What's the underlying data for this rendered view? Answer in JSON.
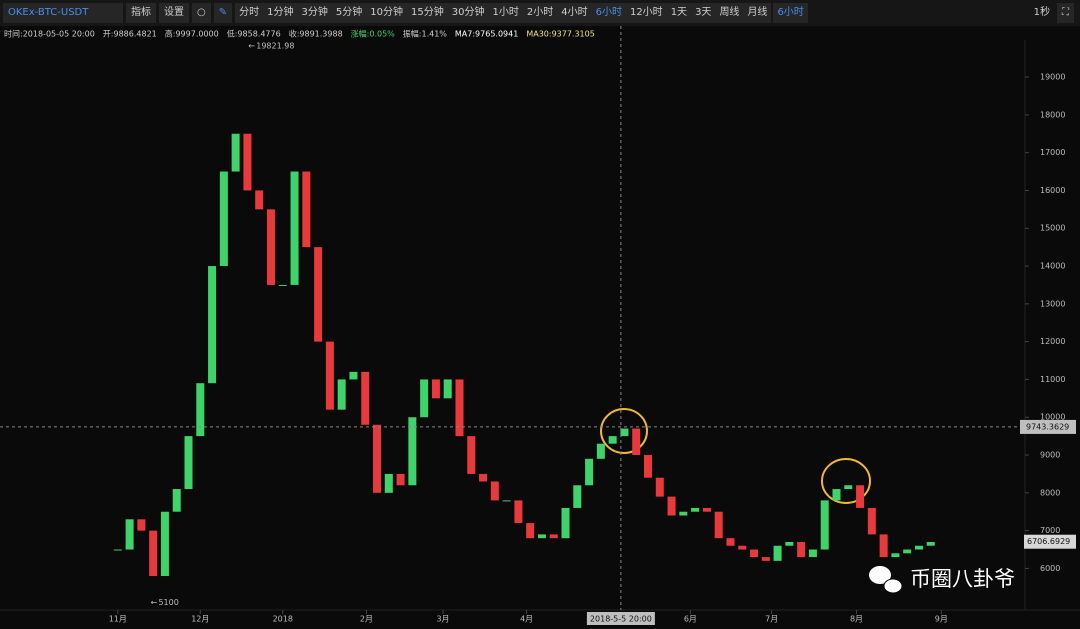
{
  "toolbar": {
    "symbol": "OKEx-BTC-USDT",
    "buttons": [
      "指标",
      "设置"
    ],
    "periods": [
      "分时",
      "1分钟",
      "3分钟",
      "5分钟",
      "10分钟",
      "15分钟",
      "30分钟",
      "1小时",
      "2小时",
      "4小时",
      "6小时",
      "12小时",
      "1天",
      "3天",
      "周线",
      "月线"
    ],
    "active_period": "6小时",
    "dropdown": "6小时",
    "refresh": "1秒"
  },
  "info": [
    {
      "text": "时间:2018-05-05 20:00",
      "color": "#cfcfcf"
    },
    {
      "text": "开:9886.4821",
      "color": "#cfcfcf"
    },
    {
      "text": "高:9997.0000",
      "color": "#cfcfcf"
    },
    {
      "text": "低:9858.4776",
      "color": "#cfcfcf"
    },
    {
      "text": "收:9891.3988",
      "color": "#cfcfcf"
    },
    {
      "text": "涨幅:0.05%",
      "color": "#3fd36b"
    },
    {
      "text": "振幅:1.41%",
      "color": "#cfcfcf"
    },
    {
      "text": "MA7:9765.0941",
      "color": "#ffffff"
    },
    {
      "text": "MA30:9377.3105",
      "color": "#f1e27a"
    }
  ],
  "chart_data": {
    "type": "candlestick",
    "values": [
      6500,
      7300,
      7000,
      5800,
      7500,
      8100,
      9500,
      10900,
      14000,
      16500,
      17500,
      16000,
      15500,
      13500,
      13500,
      16500,
      14500,
      12000,
      10200,
      11000,
      11200,
      9800,
      8000,
      8500,
      8200,
      10000,
      11000,
      10500,
      11000,
      9500,
      8500,
      8300,
      7800,
      7800,
      7200,
      6800,
      6900,
      6800,
      7600,
      8200,
      8900,
      9300,
      9500,
      9700,
      9000,
      8400,
      7900,
      7400,
      7500,
      7600,
      7500,
      6800,
      6600,
      6500,
      6300,
      6200,
      6600,
      6700,
      6300,
      6500,
      7800,
      8100,
      8200,
      7600,
      6900,
      6300,
      6400,
      6500,
      6600,
      6700
    ],
    "up_color": "#3fd36b",
    "down_color": "#e8393c",
    "xlim": [
      -10,
      77
    ],
    "xticks": [
      {
        "value": 0,
        "label": "11月"
      },
      {
        "value": 7,
        "label": "12月"
      },
      {
        "value": 14,
        "label": "2018"
      },
      {
        "value": 21.1,
        "label": "2月"
      },
      {
        "value": 27.6,
        "label": "3月"
      },
      {
        "value": 34.7,
        "label": "4月"
      },
      {
        "value": 48.6,
        "label": "6月"
      },
      {
        "value": 55.5,
        "label": "7月"
      },
      {
        "value": 62.7,
        "label": "8月"
      },
      {
        "value": 69.9,
        "label": "9月"
      }
    ],
    "ylim": [
      4900,
      19980
    ],
    "yticks": [
      6000,
      7000,
      8000,
      9000,
      10000,
      11000,
      12000,
      13000,
      14000,
      15000,
      16000,
      17000,
      18000,
      19000
    ],
    "annotations": [
      {
        "value": 19821.98,
        "label": "19821.98",
        "x": 10.9
      },
      {
        "value": 5100,
        "label": "5100",
        "x": 2.6
      }
    ],
    "crosshair": {
      "x": 42.7,
      "x_label": "2018-5-5 20:00",
      "value": 9743.3629,
      "label": "9743.3629"
    },
    "last_price": {
      "value": 6706.6929,
      "label": "6706.6929"
    }
  },
  "watermark": "币圈八卦爷"
}
